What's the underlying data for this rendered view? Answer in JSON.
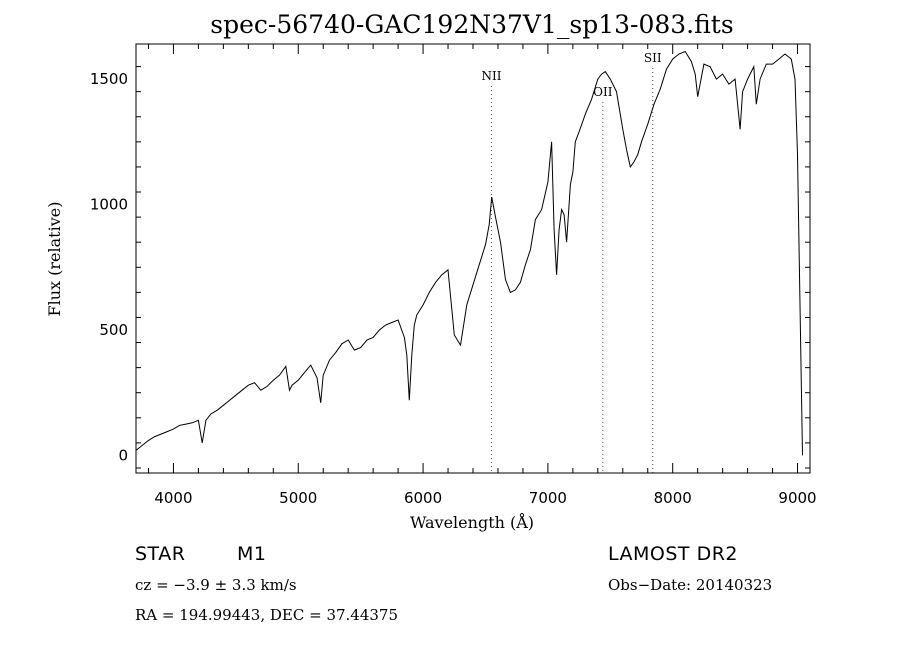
{
  "chart_data": {
    "type": "line",
    "title": "spec-56740-GAC192N37V1_sp13-083.fits",
    "xlabel": "Wavelength (Å)",
    "ylabel": "Flux (relative)",
    "xlim": [
      3700,
      9100
    ],
    "ylim": [
      -70,
      1640
    ],
    "xticks": [
      "4000",
      "5000",
      "6000",
      "7000",
      "8000",
      "9000"
    ],
    "yticks": [
      "0",
      "500",
      "1000",
      "1500"
    ],
    "grid": false,
    "lines": [
      {
        "label": "NII",
        "x": 6548
      },
      {
        "label": "OII",
        "x": 7440
      },
      {
        "label": "SII",
        "x": 7840
      }
    ],
    "series": [
      {
        "x": [
          3700,
          3750,
          3800,
          3850,
          3900,
          3950,
          4000,
          4050,
          4100,
          4150,
          4200,
          4230,
          4260,
          4300,
          4350,
          4400,
          4450,
          4500,
          4550,
          4600,
          4650,
          4700,
          4750,
          4800,
          4850,
          4900,
          4930,
          4950,
          5000,
          5050,
          5100,
          5150,
          5180,
          5200,
          5250,
          5300,
          5350,
          5400,
          5450,
          5500,
          5550,
          5600,
          5650,
          5700,
          5750,
          5800,
          5850,
          5870,
          5890,
          5910,
          5930,
          5950,
          6000,
          6050,
          6100,
          6150,
          6200,
          6250,
          6300,
          6350,
          6400,
          6450,
          6500,
          6530,
          6550,
          6580,
          6620,
          6660,
          6700,
          6740,
          6780,
          6820,
          6860,
          6900,
          6950,
          7000,
          7030,
          7050,
          7070,
          7090,
          7110,
          7130,
          7150,
          7180,
          7200,
          7220,
          7250,
          7300,
          7350,
          7400,
          7430,
          7460,
          7500,
          7550,
          7600,
          7630,
          7660,
          7690,
          7720,
          7750,
          7800,
          7850,
          7900,
          7950,
          8000,
          8050,
          8100,
          8150,
          8180,
          8200,
          8250,
          8300,
          8350,
          8400,
          8450,
          8500,
          8540,
          8560,
          8600,
          8650,
          8670,
          8700,
          8750,
          8800,
          8850,
          8900,
          8950,
          8980,
          9000,
          9020,
          9040
        ],
        "y": [
          20,
          40,
          60,
          75,
          85,
          95,
          105,
          120,
          125,
          130,
          140,
          50,
          140,
          165,
          180,
          200,
          220,
          240,
          260,
          280,
          290,
          260,
          275,
          300,
          320,
          355,
          260,
          280,
          300,
          330,
          360,
          310,
          210,
          320,
          380,
          410,
          445,
          460,
          420,
          430,
          460,
          470,
          500,
          520,
          530,
          540,
          470,
          400,
          220,
          400,
          520,
          560,
          600,
          650,
          690,
          720,
          740,
          480,
          440,
          600,
          680,
          760,
          840,
          920,
          1030,
          950,
          850,
          700,
          650,
          660,
          690,
          760,
          820,
          940,
          980,
          1090,
          1250,
          900,
          720,
          900,
          980,
          960,
          850,
          1080,
          1130,
          1250,
          1290,
          1360,
          1420,
          1500,
          1520,
          1530,
          1500,
          1450,
          1300,
          1220,
          1150,
          1170,
          1200,
          1250,
          1320,
          1400,
          1460,
          1540,
          1580,
          1600,
          1610,
          1570,
          1520,
          1430,
          1560,
          1550,
          1500,
          1520,
          1480,
          1500,
          1300,
          1450,
          1500,
          1550,
          1400,
          1500,
          1560,
          1560,
          1580,
          1600,
          1580,
          1500,
          1200,
          600,
          0
        ]
      }
    ]
  },
  "footer": {
    "object_type": "STAR",
    "subclass": "M1",
    "survey": "LAMOST DR2",
    "cz": "cz = −3.9 ± 3.3 km/s",
    "obs_date": "Obs−Date: 20140323",
    "coords": "RA = 194.99443, DEC =  37.44375"
  }
}
